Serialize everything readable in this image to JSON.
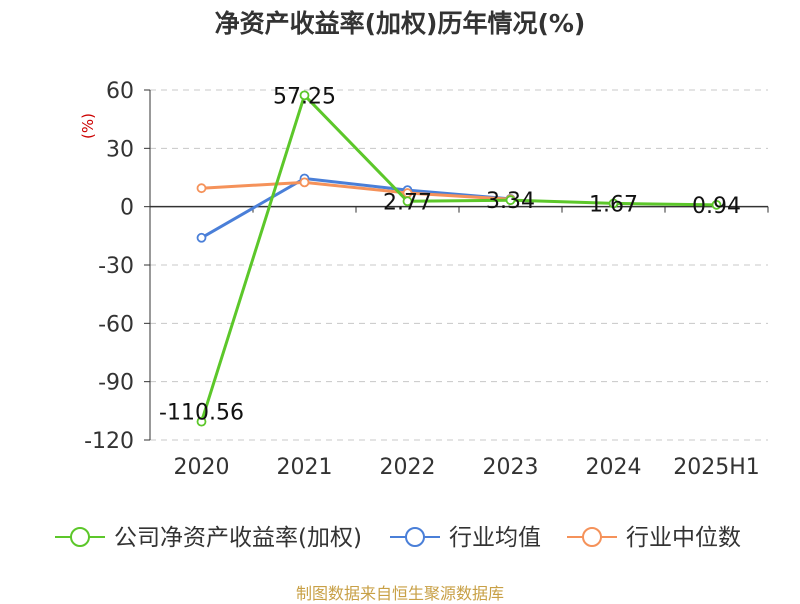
{
  "title": "净资产收益率(加权)历年情况(%)",
  "source": "制图数据来自恒生聚源数据库",
  "colors": {
    "grid": "#c8c8c8",
    "axis": "#333333"
  },
  "chart_data": {
    "type": "line",
    "categories": [
      "2020",
      "2021",
      "2022",
      "2023",
      "2024",
      "2025H1"
    ],
    "ylabel": "(%)",
    "ylim": [
      -120,
      60
    ],
    "yticks": [
      60,
      30,
      0,
      -30,
      -60,
      -90,
      -120
    ],
    "grid": true,
    "legend_position": "bottom",
    "series": [
      {
        "name": "公司净资产收益率(加权)",
        "color": "#5cc72a",
        "values": [
          -110.56,
          57.25,
          2.77,
          3.34,
          1.67,
          0.94
        ],
        "labels": [
          "-110.56",
          "57.25",
          "2.77",
          "3.34",
          "1.67",
          "0.94"
        ]
      },
      {
        "name": "行业均值",
        "color": "#4a7fd8",
        "values": [
          -16,
          14.5,
          8.5,
          4,
          null,
          null
        ]
      },
      {
        "name": "行业中位数",
        "color": "#f5925a",
        "values": [
          9.5,
          12.5,
          7,
          3.8,
          null,
          null
        ]
      }
    ]
  }
}
